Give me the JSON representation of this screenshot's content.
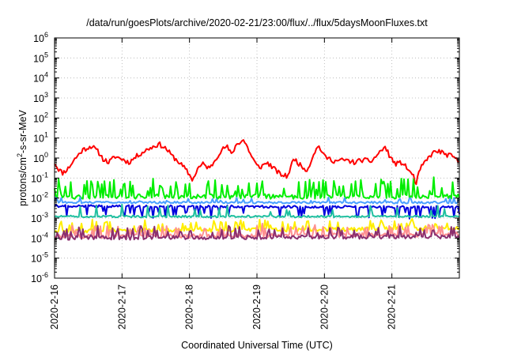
{
  "chart_data": {
    "type": "line",
    "title": "/data/run/goesPlots/archive/2020-02-21/23:00/flux/../flux/5daysMoonFluxes.txt",
    "xlabel": "Coordinated Universal Time (UTC)",
    "ylabel": {
      "pre": "protons/cm",
      "sup": "2",
      "post": "-s-sr-MeV"
    },
    "yscale": "log",
    "ylim_exp": [
      -6,
      6
    ],
    "y_tick_exponents": [
      -6,
      -5,
      -4,
      -3,
      -2,
      -1,
      0,
      1,
      2,
      3,
      4,
      5,
      6
    ],
    "y_tick_base": "10",
    "x_range_days": [
      0,
      6
    ],
    "x_ticks": [
      {
        "label": "2020-2-16",
        "day": 0
      },
      {
        "label": "2020-2-17",
        "day": 1
      },
      {
        "label": "2020-2-18",
        "day": 2
      },
      {
        "label": "2020-2-19",
        "day": 3
      },
      {
        "label": "2020-2-20",
        "day": 4
      },
      {
        "label": "2020-2-21",
        "day": 5
      }
    ],
    "grid": true,
    "series": [
      {
        "color": "#ff0000",
        "anchors": [
          [
            0,
            0.6
          ],
          [
            0.05,
            0.3
          ],
          [
            0.12,
            0.18
          ],
          [
            0.2,
            0.3
          ],
          [
            0.3,
            0.9
          ],
          [
            0.42,
            2.6
          ],
          [
            0.55,
            4
          ],
          [
            0.65,
            2
          ],
          [
            0.72,
            0.9
          ],
          [
            0.8,
            0.6
          ],
          [
            0.9,
            1.2
          ],
          [
            1.0,
            0.9
          ],
          [
            1.1,
            0.6
          ],
          [
            1.25,
            1.5
          ],
          [
            1.4,
            3
          ],
          [
            1.55,
            5
          ],
          [
            1.65,
            3
          ],
          [
            1.75,
            1.2
          ],
          [
            1.85,
            0.6
          ],
          [
            1.95,
            0.25
          ],
          [
            2.05,
            0.08
          ],
          [
            2.12,
            0.3
          ],
          [
            2.2,
            0.5
          ],
          [
            2.3,
            0.3
          ],
          [
            2.45,
            2
          ],
          [
            2.55,
            4
          ],
          [
            2.62,
            1.5
          ],
          [
            2.7,
            5
          ],
          [
            2.8,
            8
          ],
          [
            2.85,
            4
          ],
          [
            2.92,
            1.2
          ],
          [
            3.0,
            0.4
          ],
          [
            3.05,
            0.35
          ],
          [
            3.15,
            0.6
          ],
          [
            3.25,
            0.3
          ],
          [
            3.35,
            0.15
          ],
          [
            3.45,
            0.12
          ],
          [
            3.55,
            1
          ],
          [
            3.65,
            0.4
          ],
          [
            3.75,
            0.25
          ],
          [
            3.85,
            2
          ],
          [
            3.92,
            4
          ],
          [
            4.0,
            1.2
          ],
          [
            4.15,
            0.7
          ],
          [
            4.3,
            0.8
          ],
          [
            4.45,
            0.6
          ],
          [
            4.55,
            0.8
          ],
          [
            4.7,
            0.7
          ],
          [
            4.82,
            2
          ],
          [
            4.9,
            3.5
          ],
          [
            4.97,
            1.2
          ],
          [
            5.05,
            0.5
          ],
          [
            5.15,
            0.6
          ],
          [
            5.25,
            0.25
          ],
          [
            5.32,
            0.12
          ],
          [
            5.36,
            0.05
          ],
          [
            5.42,
            0.3
          ],
          [
            5.52,
            0.8
          ],
          [
            5.6,
            1.8
          ],
          [
            5.7,
            2.2
          ],
          [
            5.8,
            1.5
          ],
          [
            5.9,
            1.2
          ],
          [
            6.0,
            0.6
          ]
        ],
        "noise": 0.12,
        "spike": 0,
        "spikeProb": 0,
        "seed": 11
      },
      {
        "color": "#00ee00",
        "anchors": [
          [
            0,
            0.012
          ],
          [
            6,
            0.012
          ]
        ],
        "noise": 0.12,
        "spike": 0.9,
        "spikeProb": 0.28,
        "seed": 21
      },
      {
        "color": "#4aa0ff",
        "anchors": [
          [
            0,
            0.006
          ],
          [
            6,
            0.006
          ]
        ],
        "noise": 0.05,
        "spike": 0.25,
        "spikeProb": 0.1,
        "seed": 31
      },
      {
        "color": "#0000dd",
        "anchors": [
          [
            0,
            0.004
          ],
          [
            6,
            0.0035
          ]
        ],
        "noise": 0.06,
        "spike": -0.55,
        "spikeProb": 0.16,
        "seed": 41
      },
      {
        "color": "#20c0a0",
        "anchors": [
          [
            0,
            0.0012
          ],
          [
            6,
            0.0012
          ]
        ],
        "noise": 0.05,
        "spike": 0.6,
        "spikeProb": 0.07,
        "seed": 51
      },
      {
        "color": "#ffee00",
        "anchors": [
          [
            0,
            0.00022
          ],
          [
            6,
            0.0003
          ]
        ],
        "noise": 0.1,
        "spike": 0.5,
        "spikeProb": 0.22,
        "seed": 61
      },
      {
        "color": "#ff9090",
        "anchors": [
          [
            0,
            0.00012
          ],
          [
            6,
            0.00015
          ]
        ],
        "noise": 0.1,
        "spike": 0.55,
        "spikeProb": 0.22,
        "seed": 71
      },
      {
        "color": "#8b2f6f",
        "anchors": [
          [
            0,
            0.0001
          ],
          [
            6,
            0.00012
          ]
        ],
        "noise": 0.1,
        "spike": 0.55,
        "spikeProb": 0.22,
        "seed": 81
      }
    ]
  }
}
